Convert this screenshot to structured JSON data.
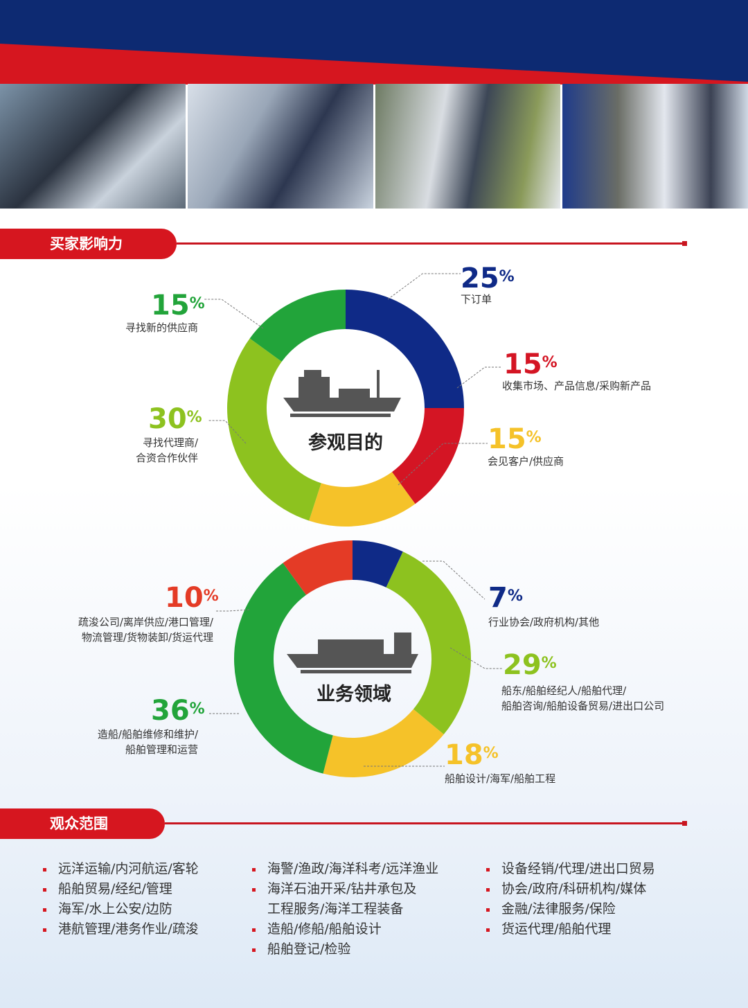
{
  "colors": {
    "navy": "#0f2a87",
    "red": "#d41524",
    "yellow": "#f5c229",
    "lightgreen": "#8dc21f",
    "green": "#22a43a",
    "orangered": "#e43b26"
  },
  "sections": {
    "buyer_influence": "买家影响力",
    "audience_scope": "观众范围"
  },
  "chart_data": [
    {
      "type": "pie",
      "title": "参观目的",
      "donut": true,
      "icon": "ship-icon",
      "slices": [
        {
          "value": 25,
          "label_pct": "25",
          "label": [
            "下订单"
          ],
          "color": "#0f2a87"
        },
        {
          "value": 15,
          "label_pct": "15",
          "label": [
            "收集市场、产品信息/采购新产品"
          ],
          "color": "#d41524"
        },
        {
          "value": 15,
          "label_pct": "15",
          "label": [
            "会见客户/供应商"
          ],
          "color": "#f5c229"
        },
        {
          "value": 30,
          "label_pct": "30",
          "label": [
            "寻找代理商/",
            "合资合作伙伴"
          ],
          "color": "#8dc21f"
        },
        {
          "value": 15,
          "label_pct": "15",
          "label": [
            "寻找新的供应商"
          ],
          "color": "#22a43a"
        }
      ]
    },
    {
      "type": "pie",
      "title": "业务领域",
      "donut": true,
      "icon": "container-ship-icon",
      "slices": [
        {
          "value": 7,
          "label_pct": "7",
          "label": [
            "行业协会/政府机构/其他"
          ],
          "color": "#0f2a87"
        },
        {
          "value": 29,
          "label_pct": "29",
          "label": [
            "船东/船舶经纪人/船舶代理/",
            "船舶咨询/船舶设备贸易/进出口公司"
          ],
          "color": "#8dc21f"
        },
        {
          "value": 18,
          "label_pct": "18",
          "label": [
            "船舶设计/海军/船舶工程"
          ],
          "color": "#f5c229"
        },
        {
          "value": 36,
          "label_pct": "36",
          "label": [
            "造船/船舶维修和维护/",
            "船舶管理和运营"
          ],
          "color": "#22a43a"
        },
        {
          "value": 10,
          "label_pct": "10",
          "label": [
            "疏浚公司/离岸供应/港口管理/",
            "物流管理/货物装卸/货运代理"
          ],
          "color": "#e43b26"
        }
      ]
    }
  ],
  "audience": {
    "col1": [
      "远洋运输/内河航运/客轮",
      "船舶贸易/经纪/管理",
      "海军/水上公安/边防",
      "港航管理/港务作业/疏浚"
    ],
    "col2": [
      "海警/渔政/海洋科考/远洋渔业",
      "海洋石油开采/钻井承包及",
      "工程服务/海洋工程装备",
      "造船/修船/船舶设计",
      "船舶登记/检验"
    ],
    "col3": [
      "设备经销/代理/进出口贸易",
      "协会/政府/科研机构/媒体",
      "金融/法律服务/保险",
      "货运代理/船舶代理"
    ]
  }
}
